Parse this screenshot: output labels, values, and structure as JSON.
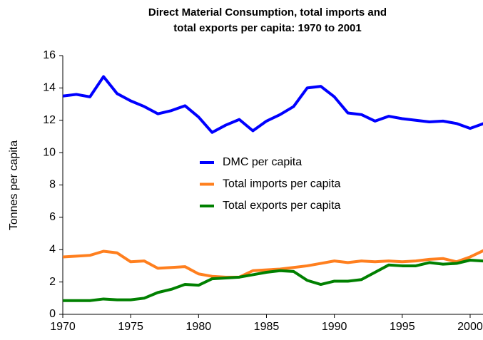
{
  "chart_data": {
    "type": "line",
    "title": [
      "Direct Material Consumption, total imports and",
      "total exports per capita: 1970 to 2001"
    ],
    "y_label": "Tonnes per capita",
    "x": [
      1970,
      1971,
      1972,
      1973,
      1974,
      1975,
      1976,
      1977,
      1978,
      1979,
      1980,
      1981,
      1982,
      1983,
      1984,
      1985,
      1986,
      1987,
      1988,
      1989,
      1990,
      1991,
      1992,
      1993,
      1994,
      1995,
      1996,
      1997,
      1998,
      1999,
      2000,
      2001
    ],
    "series": [
      {
        "name": "DMC per capita",
        "color": "#0000ff",
        "values": [
          13.5,
          13.6,
          13.45,
          14.7,
          13.65,
          13.2,
          12.85,
          12.4,
          12.6,
          12.9,
          12.2,
          11.25,
          11.7,
          12.05,
          11.35,
          11.95,
          12.35,
          12.85,
          14.0,
          14.1,
          13.45,
          12.45,
          12.35,
          11.95,
          12.25,
          12.1,
          12.0,
          11.9,
          11.95,
          11.8,
          11.5,
          11.8
        ]
      },
      {
        "name": "Total imports per capita",
        "color": "#ff7f1e",
        "values": [
          3.55,
          3.6,
          3.65,
          3.9,
          3.8,
          3.25,
          3.3,
          2.85,
          2.9,
          2.95,
          2.5,
          2.35,
          2.3,
          2.3,
          2.7,
          2.75,
          2.8,
          2.9,
          3.0,
          3.15,
          3.3,
          3.2,
          3.3,
          3.25,
          3.3,
          3.25,
          3.3,
          3.4,
          3.45,
          3.25,
          3.55,
          3.95
        ]
      },
      {
        "name": "Total exports per capita",
        "color": "#008000",
        "values": [
          0.85,
          0.85,
          0.85,
          0.95,
          0.9,
          0.9,
          1.0,
          1.35,
          1.55,
          1.85,
          1.8,
          2.2,
          2.25,
          2.3,
          2.45,
          2.6,
          2.7,
          2.65,
          2.1,
          1.85,
          2.05,
          2.05,
          2.15,
          2.6,
          3.05,
          3.0,
          3.0,
          3.2,
          3.1,
          3.15,
          3.35,
          3.3
        ]
      }
    ],
    "xlim": [
      1970,
      2001
    ],
    "xticks": [
      1970,
      1975,
      1980,
      1985,
      1990,
      1995,
      2000
    ],
    "ylim": [
      0,
      16
    ],
    "yticks": [
      0,
      2,
      4,
      6,
      8,
      10,
      12,
      14,
      16
    ],
    "grid": false,
    "legend": "center"
  }
}
